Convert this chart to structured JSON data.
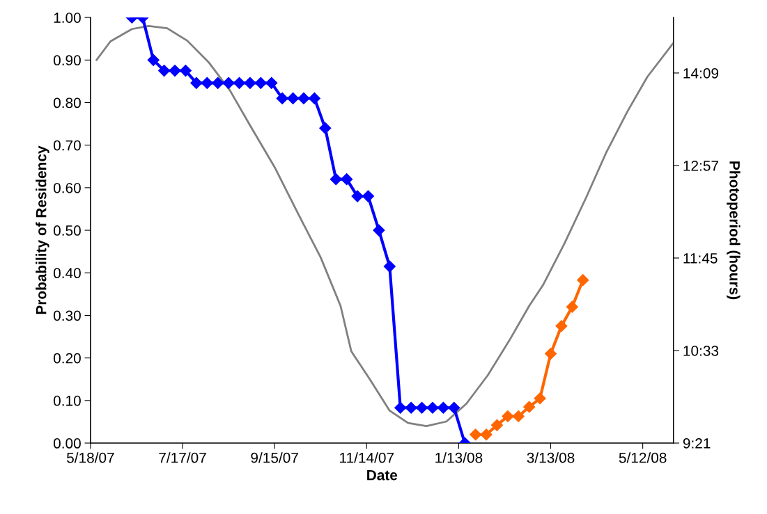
{
  "chart_data": {
    "type": "line",
    "xlabel": "Date",
    "ylabel": "Probability of Residency",
    "y2label": "Photoperiod (hours)",
    "xlim": [
      "2007-05-18",
      "2008-06-01"
    ],
    "xticks": [
      {
        "value": "2007-05-18",
        "label": "5/18/07"
      },
      {
        "value": "2007-07-17",
        "label": "7/17/07"
      },
      {
        "value": "2007-09-15",
        "label": "9/15/07"
      },
      {
        "value": "2007-11-14",
        "label": "11/14/07"
      },
      {
        "value": "2008-01-13",
        "label": "1/13/08"
      },
      {
        "value": "2008-03-13",
        "label": "3/13/08"
      },
      {
        "value": "2008-05-12",
        "label": "5/12/08"
      }
    ],
    "ylim": [
      0,
      1
    ],
    "yticks": [
      {
        "value": 0,
        "label": "0.00"
      },
      {
        "value": 0.1,
        "label": "0.10"
      },
      {
        "value": 0.2,
        "label": "0.20"
      },
      {
        "value": 0.3,
        "label": "0.30"
      },
      {
        "value": 0.4,
        "label": "0.40"
      },
      {
        "value": 0.5,
        "label": "0.50"
      },
      {
        "value": 0.6,
        "label": "0.60"
      },
      {
        "value": 0.7,
        "label": "0.70"
      },
      {
        "value": 0.8,
        "label": "0.80"
      },
      {
        "value": 0.9,
        "label": "0.90"
      },
      {
        "value": 1,
        "label": "1.00"
      }
    ],
    "y2lim": [
      9.35,
      14.87
    ],
    "y2ticks": [
      {
        "value": 9.35,
        "label": "9:21"
      },
      {
        "value": 10.55,
        "label": "10:33"
      },
      {
        "value": 11.75,
        "label": "11:45"
      },
      {
        "value": 12.95,
        "label": "12:57"
      },
      {
        "value": 14.15,
        "label": "14:09"
      }
    ],
    "grid": false,
    "legend": false,
    "series": [
      {
        "color": "#808080",
        "axis": "y2",
        "marker": "none",
        "x": [
          "2007-05-22",
          "2007-05-31",
          "2007-06-14",
          "2007-06-25",
          "2007-07-07",
          "2007-07-20",
          "2007-08-03",
          "2007-08-17",
          "2007-08-30",
          "2007-09-15",
          "2007-10-01",
          "2007-10-15",
          "2007-10-28",
          "2007-11-04",
          "2007-11-16",
          "2007-11-29",
          "2007-12-11",
          "2007-12-23",
          "2008-01-05",
          "2008-01-18",
          "2008-02-01",
          "2008-02-15",
          "2008-02-28",
          "2008-03-08",
          "2008-03-22",
          "2008-04-05",
          "2008-04-18",
          "2008-05-02",
          "2008-05-15",
          "2008-06-01"
        ],
        "values": [
          14.32,
          14.56,
          14.72,
          14.76,
          14.73,
          14.57,
          14.29,
          13.92,
          13.47,
          12.93,
          12.3,
          11.76,
          11.13,
          10.54,
          10.18,
          9.77,
          9.61,
          9.57,
          9.63,
          9.86,
          10.23,
          10.68,
          11.13,
          11.4,
          11.94,
          12.53,
          13.11,
          13.65,
          14.1,
          14.54
        ]
      },
      {
        "color": "#0000ff",
        "marker": "diamond",
        "x": [
          "2007-06-14",
          "2007-06-21",
          "2007-06-28",
          "2007-07-05",
          "2007-07-12",
          "2007-07-19",
          "2007-07-26",
          "2007-08-02",
          "2007-08-09",
          "2007-08-16",
          "2007-08-23",
          "2007-08-30",
          "2007-09-06",
          "2007-09-13",
          "2007-09-20",
          "2007-09-27",
          "2007-10-04",
          "2007-10-11",
          "2007-10-18",
          "2007-10-25",
          "2007-11-01",
          "2007-11-08",
          "2007-11-15",
          "2007-11-22",
          "2007-11-29",
          "2007-12-06",
          "2007-12-13",
          "2007-12-20",
          "2007-12-27",
          "2008-01-03",
          "2008-01-10",
          "2008-01-17"
        ],
        "values": [
          1.0,
          1.0,
          0.9,
          0.875,
          0.875,
          0.875,
          0.846,
          0.846,
          0.846,
          0.846,
          0.846,
          0.846,
          0.846,
          0.846,
          0.81,
          0.81,
          0.81,
          0.81,
          0.74,
          0.62,
          0.62,
          0.58,
          0.58,
          0.5,
          0.415,
          0.083,
          0.083,
          0.083,
          0.083,
          0.083,
          0.083,
          0.0
        ]
      },
      {
        "color": "#ff6600",
        "marker": "diamond",
        "x": [
          "2008-01-24",
          "2008-01-31",
          "2008-02-07",
          "2008-02-14",
          "2008-02-21",
          "2008-02-28",
          "2008-03-06",
          "2008-03-13",
          "2008-03-20",
          "2008-03-27",
          "2008-04-03"
        ],
        "values": [
          0.02,
          0.02,
          0.042,
          0.063,
          0.063,
          0.085,
          0.105,
          0.21,
          0.275,
          0.32,
          0.383
        ]
      }
    ]
  }
}
